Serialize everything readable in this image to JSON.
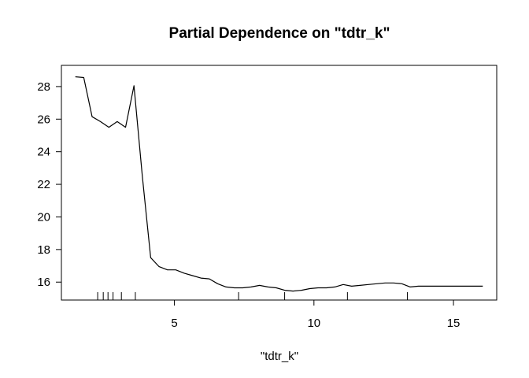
{
  "chart_data": {
    "type": "line",
    "title": "Partial Dependence on \"tdtr_k\"",
    "xlabel": "\"tdtr_k\"",
    "ylabel": "",
    "xlim": [
      0.95,
      16.55
    ],
    "ylim": [
      14.9,
      29.3
    ],
    "xticks": [
      5,
      10,
      15
    ],
    "yticks": [
      16,
      18,
      20,
      22,
      24,
      26,
      28
    ],
    "grid": false,
    "legend": "none",
    "series": [
      {
        "color": "#000000",
        "x": [
          1.45,
          1.75,
          2.05,
          2.35,
          2.65,
          2.95,
          3.25,
          3.55,
          3.85,
          4.15,
          4.45,
          4.75,
          5.05,
          5.35,
          5.65,
          5.95,
          6.25,
          6.55,
          6.85,
          7.15,
          7.45,
          7.75,
          8.05,
          8.35,
          8.65,
          8.95,
          9.25,
          9.55,
          9.85,
          10.15,
          10.45,
          10.75,
          11.05,
          11.35,
          11.65,
          11.95,
          12.25,
          12.55,
          12.85,
          13.15,
          13.45,
          13.75,
          14.05,
          14.35,
          14.65,
          14.95,
          15.25,
          15.55,
          15.85,
          16.05
        ],
        "y": [
          28.6,
          28.55,
          26.15,
          25.85,
          25.5,
          25.85,
          25.5,
          28.05,
          22.5,
          17.5,
          16.95,
          16.75,
          16.75,
          16.55,
          16.4,
          16.25,
          16.2,
          15.9,
          15.7,
          15.65,
          15.65,
          15.7,
          15.8,
          15.7,
          15.65,
          15.5,
          15.45,
          15.5,
          15.6,
          15.65,
          15.65,
          15.7,
          15.85,
          15.75,
          15.8,
          15.85,
          15.9,
          15.95,
          15.95,
          15.9,
          15.7,
          15.75,
          15.75,
          15.75,
          15.75,
          15.75,
          15.75,
          15.75,
          15.75,
          15.75
        ]
      }
    ],
    "rug": [
      2.25,
      2.45,
      2.62,
      2.8,
      3.1,
      3.6,
      7.3,
      8.95,
      11.2,
      13.35
    ]
  }
}
